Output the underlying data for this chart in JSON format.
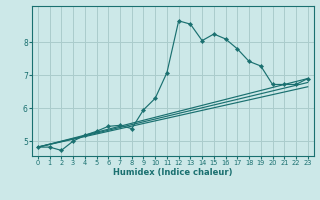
{
  "xlabel": "Humidex (Indice chaleur)",
  "ylabel": "",
  "bg_color": "#cce8e8",
  "grid_color": "#aacccc",
  "line_color": "#1a7070",
  "xlim": [
    -0.5,
    23.5
  ],
  "ylim": [
    4.55,
    9.1
  ],
  "xticks": [
    0,
    1,
    2,
    3,
    4,
    5,
    6,
    7,
    8,
    9,
    10,
    11,
    12,
    13,
    14,
    15,
    16,
    17,
    18,
    19,
    20,
    21,
    22,
    23
  ],
  "yticks": [
    5,
    6,
    7,
    8
  ],
  "line1_x": [
    0,
    1,
    2,
    3,
    4,
    5,
    6,
    7,
    8,
    9,
    10,
    11,
    12,
    13,
    14,
    15,
    16,
    17,
    18,
    19,
    20,
    21,
    22,
    23
  ],
  "line1_y": [
    4.82,
    4.82,
    4.72,
    5.0,
    5.18,
    5.3,
    5.45,
    5.48,
    5.38,
    5.95,
    6.3,
    7.08,
    8.65,
    8.55,
    8.05,
    8.25,
    8.1,
    7.8,
    7.42,
    7.28,
    6.72,
    6.72,
    6.72,
    6.9
  ],
  "line2_x": [
    0,
    23
  ],
  "line2_y": [
    4.82,
    6.9
  ],
  "line3_x": [
    0,
    23
  ],
  "line3_y": [
    4.82,
    6.78
  ],
  "line4_x": [
    0,
    23
  ],
  "line4_y": [
    4.82,
    6.65
  ]
}
